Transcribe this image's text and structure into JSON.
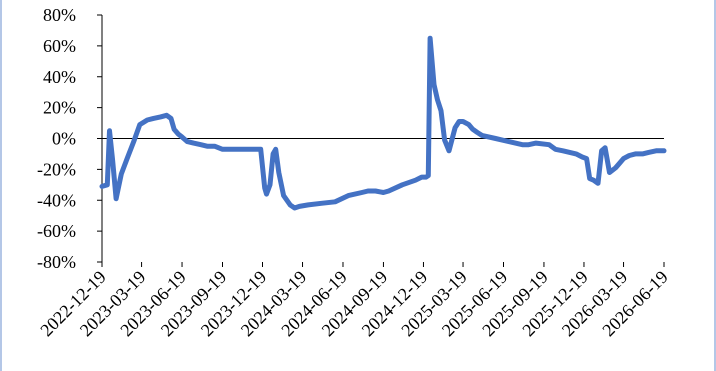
{
  "chart_data": {
    "type": "line",
    "title": "",
    "xlabel": "",
    "ylabel": "",
    "ylim": [
      -80,
      80
    ],
    "y_ticks": [
      {
        "value": 80,
        "label": "80%"
      },
      {
        "value": 60,
        "label": "60%"
      },
      {
        "value": 40,
        "label": "40%"
      },
      {
        "value": 20,
        "label": "20%"
      },
      {
        "value": 0,
        "label": "0%"
      },
      {
        "value": -20,
        "label": "-20%"
      },
      {
        "value": -40,
        "label": "-40%"
      },
      {
        "value": -60,
        "label": "-60%"
      },
      {
        "value": -80,
        "label": "-80%"
      }
    ],
    "x_ticks": [
      "2022-12-19",
      "2023-03-19",
      "2023-06-19",
      "2023-09-19",
      "2023-12-19",
      "2024-03-19",
      "2024-06-19",
      "2024-09-19",
      "2024-12-19",
      "2025-03-19",
      "2025-06-19",
      "2025-09-19",
      "2025-12-19",
      "2026-03-19",
      "2026-06-19"
    ],
    "xlim": [
      "2022-12-19",
      "2026-06-19"
    ],
    "grid": false,
    "legend": "none",
    "colors": {
      "line": "#4472c4",
      "axis": "#000000",
      "border": "#b4c7e7"
    },
    "series": [
      {
        "x": [
          "2022-12-19",
          "2022-12-31",
          "2023-01-05",
          "2023-01-12",
          "2023-01-20",
          "2023-02-01",
          "2023-02-14",
          "2023-03-01",
          "2023-03-15",
          "2023-04-01",
          "2023-04-15",
          "2023-05-01",
          "2023-05-15",
          "2023-05-25",
          "2023-06-01",
          "2023-06-10",
          "2023-06-19",
          "2023-07-01",
          "2023-07-15",
          "2023-08-01",
          "2023-08-15",
          "2023-09-01",
          "2023-09-19",
          "2023-10-01",
          "2023-11-01",
          "2023-12-01",
          "2023-12-15",
          "2023-12-24",
          "2023-12-28",
          "2024-01-05",
          "2024-01-12",
          "2024-01-18",
          "2024-01-25",
          "2024-02-05",
          "2024-02-20",
          "2024-03-01",
          "2024-03-12",
          "2024-04-01",
          "2024-05-01",
          "2024-06-01",
          "2024-07-01",
          "2024-08-01",
          "2024-08-15",
          "2024-09-01",
          "2024-09-19",
          "2024-10-01",
          "2024-11-01",
          "2024-12-01",
          "2024-12-15",
          "2024-12-25",
          "2024-12-30",
          "2025-01-03",
          "2025-01-12",
          "2025-01-20",
          "2025-01-28",
          "2025-02-05",
          "2025-02-15",
          "2025-03-01",
          "2025-03-10",
          "2025-03-19",
          "2025-04-01",
          "2025-04-10",
          "2025-04-20",
          "2025-05-01",
          "2025-06-01",
          "2025-07-01",
          "2025-08-01",
          "2025-08-15",
          "2025-09-01",
          "2025-10-01",
          "2025-10-15",
          "2025-11-01",
          "2025-12-01",
          "2025-12-15",
          "2025-12-25",
          "2026-01-01",
          "2026-01-10",
          "2026-01-20",
          "2026-01-28",
          "2026-02-05",
          "2026-02-15",
          "2026-03-01",
          "2026-03-10",
          "2026-03-19",
          "2026-04-01",
          "2026-04-15",
          "2026-05-01",
          "2026-05-15",
          "2026-06-01",
          "2026-06-19"
        ],
        "y": [
          -31,
          -30,
          5,
          -14,
          -39,
          -23,
          -13,
          -2,
          9,
          12,
          13,
          14,
          15,
          13,
          6,
          3,
          1,
          -2,
          -3,
          -4,
          -5,
          -5,
          -7,
          -7,
          -7,
          -7,
          -7,
          -32,
          -36,
          -30,
          -10,
          -7,
          -22,
          -37,
          -43,
          -45,
          -44,
          -43,
          -42,
          -41,
          -37,
          -35,
          -34,
          -34,
          -35,
          -34,
          -30,
          -27,
          -25,
          -25,
          -24,
          65,
          35,
          25,
          18,
          -1,
          -8,
          7,
          11,
          11,
          9,
          6,
          4,
          2,
          0,
          -2,
          -4,
          -4,
          -3,
          -4,
          -7,
          -8,
          -10,
          -12,
          -13,
          -26,
          -27,
          -29,
          -8,
          -6,
          -22,
          -19,
          -16,
          -13,
          -11,
          -10,
          -10,
          -9,
          -8,
          -8
        ]
      }
    ]
  }
}
